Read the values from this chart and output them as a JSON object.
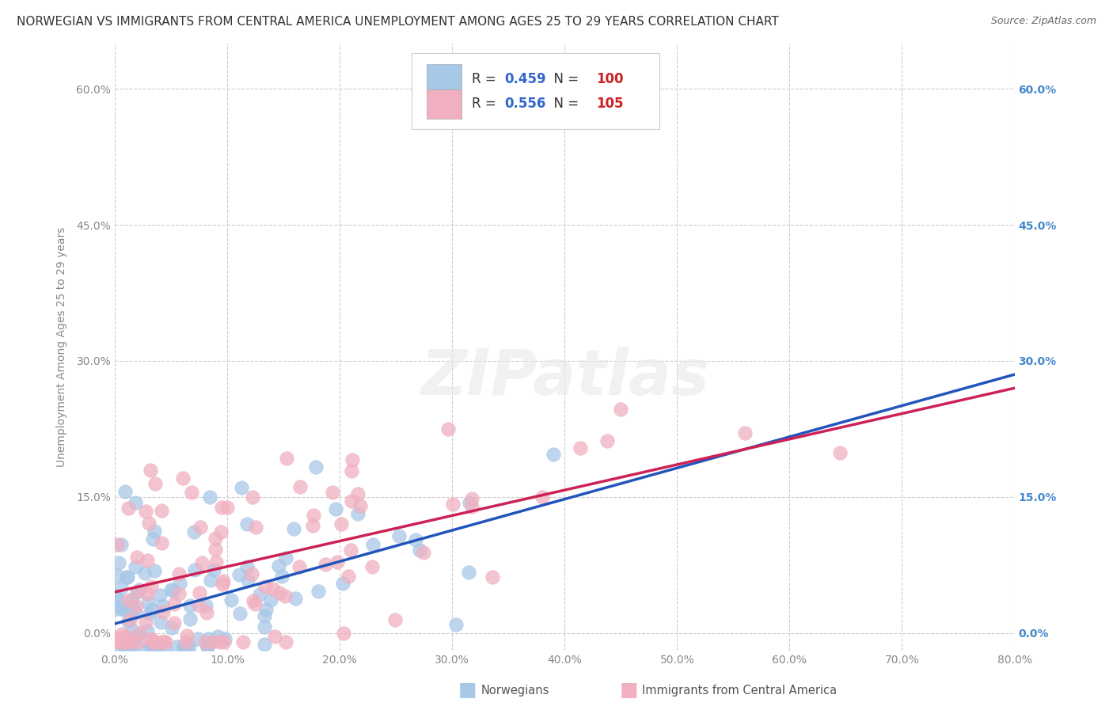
{
  "title": "NORWEGIAN VS IMMIGRANTS FROM CENTRAL AMERICA UNEMPLOYMENT AMONG AGES 25 TO 29 YEARS CORRELATION CHART",
  "source": "Source: ZipAtlas.com",
  "ylabel": "Unemployment Among Ages 25 to 29 years",
  "xlim": [
    0.0,
    0.8
  ],
  "ylim": [
    -0.02,
    0.65
  ],
  "xticks": [
    0.0,
    0.1,
    0.2,
    0.3,
    0.4,
    0.5,
    0.6,
    0.7,
    0.8
  ],
  "ytick_positions": [
    0.0,
    0.15,
    0.3,
    0.45,
    0.6
  ],
  "ytick_labels": [
    "0.0%",
    "15.0%",
    "30.0%",
    "45.0%",
    "60.0%"
  ],
  "xtick_labels": [
    "0.0%",
    "10.0%",
    "20.0%",
    "30.0%",
    "40.0%",
    "50.0%",
    "60.0%",
    "70.0%",
    "80.0%"
  ],
  "grid_color": "#cccccc",
  "background_color": "#ffffff",
  "norwegian_color": "#a8c8e8",
  "immigrant_color": "#f0b0c0",
  "norwegian_line_color": "#2255bb",
  "immigrant_line_color": "#cc2255",
  "R_norwegian": 0.459,
  "N_norwegian": 100,
  "R_immigrant": 0.556,
  "N_immigrant": 105,
  "legend_label_1": "Norwegians",
  "legend_label_2": "Immigrants from Central America",
  "watermark": "ZIPatlas",
  "title_fontsize": 11,
  "axis_label_fontsize": 10,
  "tick_fontsize": 10,
  "right_tick_color": "#4488cc",
  "left_tick_color": "#888888",
  "nor_line_start_y": 0.01,
  "nor_line_end_y": 0.285,
  "imm_line_start_y": 0.045,
  "imm_line_end_y": 0.27
}
